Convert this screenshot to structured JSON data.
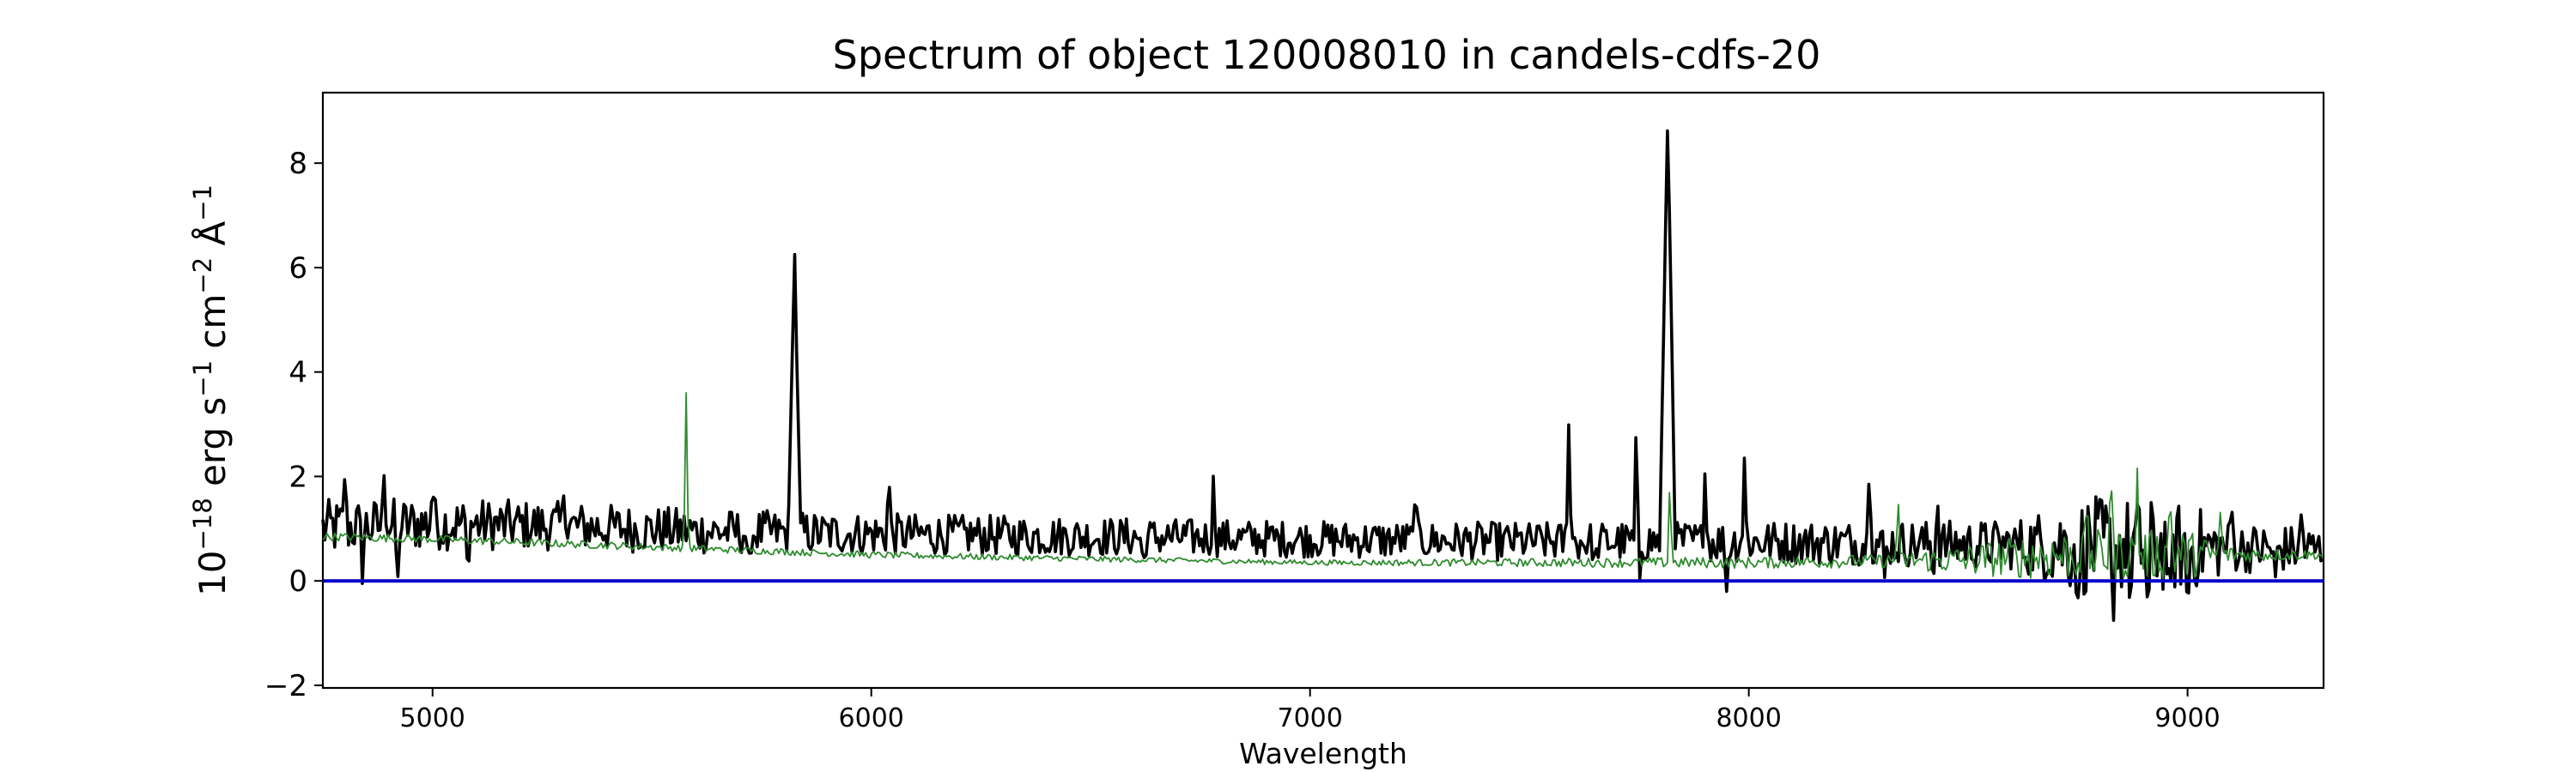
{
  "chart_data": {
    "type": "line",
    "title": "Spectrum of object 120008010 in candels-cdfs-20",
    "xlabel": "Wavelength",
    "ylabel_parts": [
      "10",
      "−18",
      " erg s",
      "−1",
      " cm",
      "−2",
      " Å",
      "−1"
    ],
    "xlim": [
      4750,
      9310
    ],
    "ylim": [
      -2.05,
      9.35
    ],
    "xticks": [
      5000,
      6000,
      7000,
      8000,
      9000
    ],
    "xtick_labels": [
      "5000",
      "6000",
      "7000",
      "8000",
      "9000"
    ],
    "yticks": [
      -2,
      0,
      2,
      4,
      6,
      8
    ],
    "ytick_labels": [
      "−2",
      "0",
      "2",
      "4",
      "6",
      "8"
    ],
    "grid": false,
    "series": [
      {
        "role": "flux",
        "color": "#000000",
        "continuum": [
          [
            4750,
            1.0
          ],
          [
            5000,
            1.1
          ],
          [
            5300,
            1.05
          ],
          [
            5600,
            0.95
          ],
          [
            6000,
            0.9
          ],
          [
            6500,
            0.85
          ],
          [
            7000,
            0.8
          ],
          [
            7500,
            0.75
          ],
          [
            8000,
            0.75
          ],
          [
            8500,
            0.7
          ],
          [
            9000,
            0.65
          ],
          [
            9310,
            0.6
          ]
        ],
        "noise": [
          [
            4750,
            0.35
          ],
          [
            5200,
            0.3
          ],
          [
            6000,
            0.25
          ],
          [
            7000,
            0.22
          ],
          [
            8000,
            0.25
          ],
          [
            8600,
            0.3
          ],
          [
            8750,
            0.6
          ],
          [
            9000,
            0.55
          ],
          [
            9100,
            0.3
          ],
          [
            9310,
            0.28
          ]
        ],
        "spikes": [
          [
            4800,
            2.05
          ],
          [
            4890,
            2.15
          ],
          [
            5000,
            1.95
          ],
          [
            5300,
            1.8
          ],
          [
            6040,
            2.12
          ],
          [
            6780,
            2.1
          ],
          [
            7240,
            1.85
          ],
          [
            7590,
            3.25
          ],
          [
            7650,
            1.6
          ],
          [
            7745,
            4.15
          ],
          [
            7900,
            2.05
          ],
          [
            7990,
            2.35
          ],
          [
            8275,
            2.45
          ],
          [
            8430,
            1.6
          ],
          [
            8830,
            1.7
          ],
          [
            8960,
            1.6
          ],
          [
            9100,
            1.6
          ],
          [
            9260,
            1.4
          ]
        ],
        "dips": [
          [
            4840,
            -0.05
          ],
          [
            4920,
            -0.2
          ],
          [
            5080,
            0.1
          ],
          [
            5720,
            0.05
          ],
          [
            6620,
            0.2
          ],
          [
            7650,
            0.0
          ],
          [
            7750,
            -0.2
          ],
          [
            7950,
            -0.3
          ],
          [
            8310,
            0.0
          ],
          [
            8420,
            0.0
          ],
          [
            8750,
            -0.5
          ],
          [
            8830,
            -1.5
          ],
          [
            8870,
            -0.6
          ],
          [
            8910,
            -1.0
          ],
          [
            8960,
            -0.9
          ],
          [
            9000,
            -0.8
          ],
          [
            9200,
            0.0
          ]
        ],
        "lines": [
          [
            5825,
            6.45,
            3
          ],
          [
            7815,
            8.85,
            4
          ]
        ]
      },
      {
        "role": "noise-spectrum",
        "color": "#2e8b2e",
        "continuum": [
          [
            4750,
            0.85
          ],
          [
            5000,
            0.8
          ],
          [
            5500,
            0.65
          ],
          [
            6000,
            0.5
          ],
          [
            6500,
            0.42
          ],
          [
            7000,
            0.35
          ],
          [
            7500,
            0.35
          ],
          [
            8000,
            0.35
          ],
          [
            8500,
            0.4
          ],
          [
            8700,
            0.5
          ],
          [
            9000,
            0.5
          ],
          [
            9310,
            0.5
          ]
        ],
        "noise": [
          [
            4750,
            0.05
          ],
          [
            7000,
            0.03
          ],
          [
            8300,
            0.08
          ],
          [
            8700,
            0.3
          ],
          [
            9000,
            0.3
          ],
          [
            9100,
            0.1
          ],
          [
            9310,
            0.05
          ]
        ],
        "spikes": [
          [
            5578,
            3.6
          ],
          [
            7820,
            2.0
          ],
          [
            8340,
            1.7
          ],
          [
            8770,
            1.6
          ],
          [
            8825,
            2.4
          ],
          [
            8885,
            2.3
          ],
          [
            8960,
            1.9
          ],
          [
            9075,
            1.4
          ]
        ],
        "dips": [],
        "lines": []
      },
      {
        "role": "zero-level",
        "color": "#0000cc",
        "constant": 0.0
      }
    ]
  }
}
